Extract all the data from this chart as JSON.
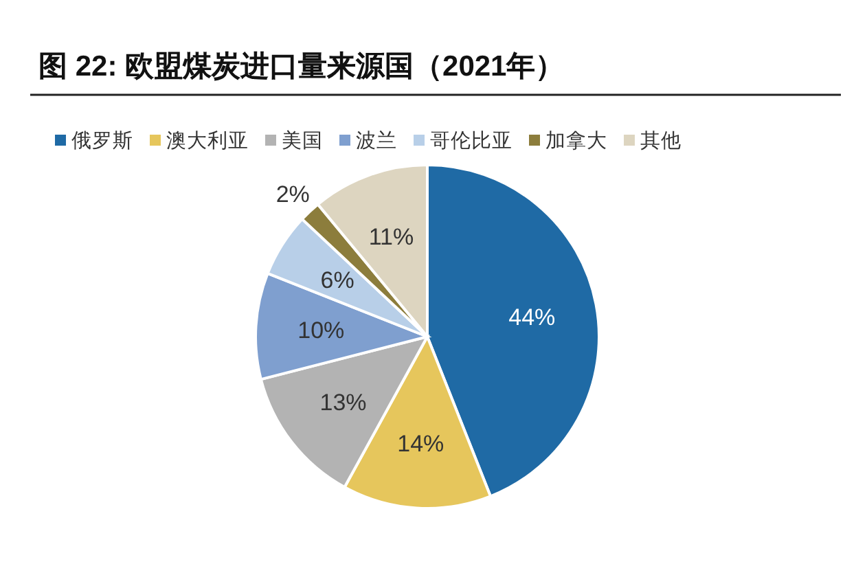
{
  "chart_data": {
    "type": "pie",
    "title": "图 22: 欧盟煤炭进口量来源国（2021年）",
    "categories": [
      "俄罗斯",
      "澳大利亚",
      "美国",
      "波兰",
      "哥伦比亚",
      "加拿大",
      "其他"
    ],
    "values": [
      44,
      14,
      13,
      10,
      6,
      2,
      11
    ],
    "colors": [
      "#1f6aa5",
      "#e6c65c",
      "#b3b3b3",
      "#7f9fcf",
      "#b8cfe8",
      "#8c7d3c",
      "#ddd5c0"
    ],
    "value_labels": [
      "44%",
      "14%",
      "13%",
      "10%",
      "6%",
      "2%",
      "11%"
    ],
    "legend": "top"
  }
}
